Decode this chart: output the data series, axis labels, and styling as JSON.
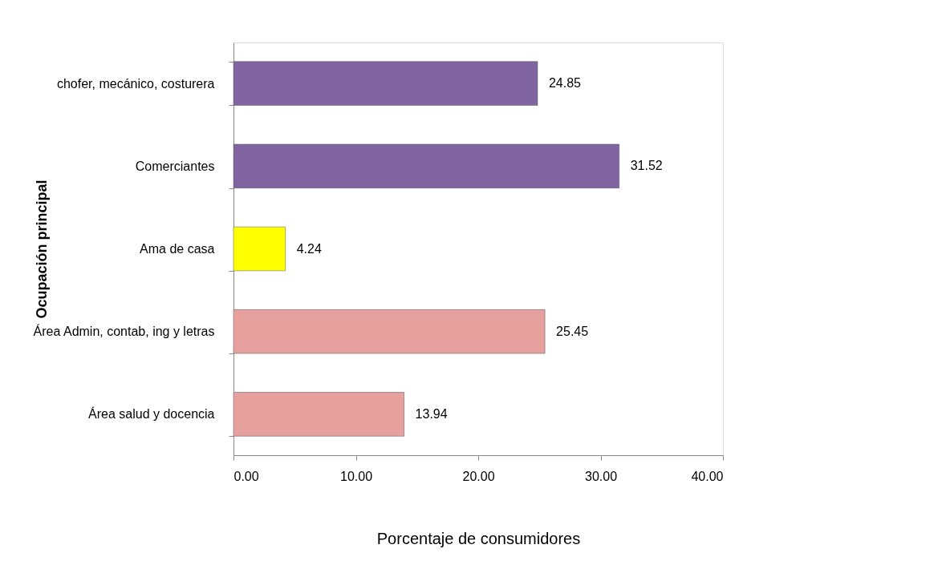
{
  "chart_data": {
    "type": "bar",
    "orientation": "horizontal",
    "xlabel": "Porcentaje  de consumidores",
    "ylabel": "Ocupación principal",
    "categories": [
      "chofer, mecánico,  costurera",
      "Comerciantes",
      "Ama de casa",
      "Área Admin, contab, ing y letras",
      "Área salud y docencia"
    ],
    "values": [
      24.85,
      31.52,
      4.24,
      25.45,
      13.94
    ],
    "colors": [
      "#8064a2",
      "#8064a2",
      "#ffff00",
      "#e6a09e",
      "#e6a09e"
    ],
    "xlim": [
      0,
      40
    ],
    "xticks": [
      {
        "value": 0,
        "label": "0.00"
      },
      {
        "value": 10,
        "label": "10.00"
      },
      {
        "value": 20,
        "label": "20.00"
      },
      {
        "value": 30,
        "label": "30.00"
      },
      {
        "value": 40,
        "label": "40.00"
      }
    ],
    "data_labels": true,
    "grid": false
  }
}
